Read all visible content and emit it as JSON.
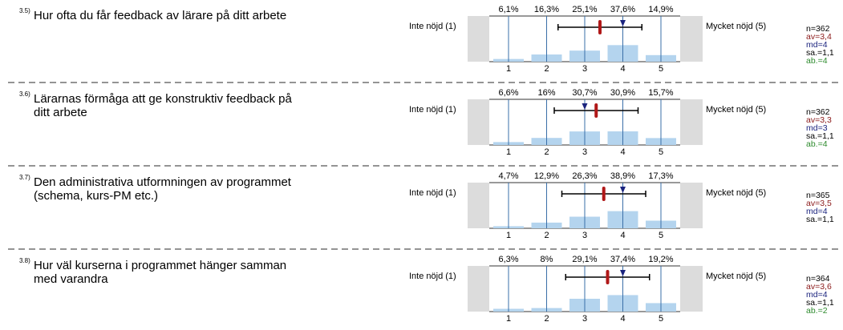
{
  "items": [
    {
      "number": "3.5)",
      "question": [
        "Hur ofta du får feedback av lärare på ditt arbete"
      ],
      "left_label": "Inte nöjd (1)",
      "right_label": "Mycket nöjd (5)",
      "categories": [
        "1",
        "2",
        "3",
        "4",
        "5"
      ],
      "values": [
        6.1,
        16.3,
        25.1,
        37.6,
        14.9
      ],
      "value_labels": [
        "6,1%",
        "16,3%",
        "25,1%",
        "37,6%",
        "14,9%"
      ],
      "n": "n=362",
      "mean": {
        "value": 3.4,
        "label": "av=3,4"
      },
      "median": {
        "value": 4,
        "label": "md=4"
      },
      "sd": {
        "value": 1.1,
        "label": "sa.=1,1"
      },
      "ab": "ab.=4"
    },
    {
      "number": "3.6)",
      "question": [
        "Lärarnas förmåga att ge konstruktiv feedback på",
        "ditt arbete"
      ],
      "left_label": "Inte nöjd (1)",
      "right_label": "Mycket nöjd (5)",
      "categories": [
        "1",
        "2",
        "3",
        "4",
        "5"
      ],
      "values": [
        6.6,
        16,
        30.7,
        30.9,
        15.7
      ],
      "value_labels": [
        "6,6%",
        "16%",
        "30,7%",
        "30,9%",
        "15,7%"
      ],
      "n": "n=362",
      "mean": {
        "value": 3.3,
        "label": "av=3,3"
      },
      "median": {
        "value": 3,
        "label": "md=3"
      },
      "sd": {
        "value": 1.1,
        "label": "sa.=1,1"
      },
      "ab": "ab.=4"
    },
    {
      "number": "3.7)",
      "question": [
        "Den administrativa utformningen av programmet",
        "(schema, kurs-PM etc.)"
      ],
      "left_label": "Inte nöjd (1)",
      "right_label": "Mycket nöjd (5)",
      "categories": [
        "1",
        "2",
        "3",
        "4",
        "5"
      ],
      "values": [
        4.7,
        12.9,
        26.3,
        38.9,
        17.3
      ],
      "value_labels": [
        "4,7%",
        "12,9%",
        "26,3%",
        "38,9%",
        "17,3%"
      ],
      "n": "n=365",
      "mean": {
        "value": 3.5,
        "label": "av=3,5"
      },
      "median": {
        "value": 4,
        "label": "md=4"
      },
      "sd": {
        "value": 1.1,
        "label": "sa.=1,1"
      }
    },
    {
      "number": "3.8)",
      "question": [
        "Hur väl kurserna i programmet hänger samman",
        "med varandra"
      ],
      "left_label": "Inte nöjd (1)",
      "right_label": "Mycket nöjd (5)",
      "categories": [
        "1",
        "2",
        "3",
        "4",
        "5"
      ],
      "values": [
        6.3,
        8,
        29.1,
        37.4,
        19.2
      ],
      "value_labels": [
        "6,3%",
        "8%",
        "29,1%",
        "37,4%",
        "19,2%"
      ],
      "n": "n=364",
      "mean": {
        "value": 3.6,
        "label": "av=3,6"
      },
      "median": {
        "value": 4,
        "label": "md=4"
      },
      "sd": {
        "value": 1.1,
        "label": "sa.=1,1"
      },
      "ab": "ab.=2"
    }
  ]
}
